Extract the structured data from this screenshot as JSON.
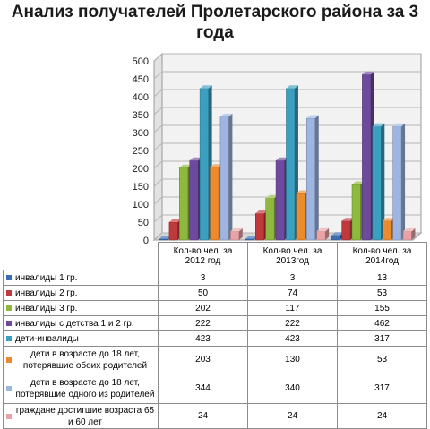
{
  "title": "Анализ получателей Пролетарского района за 3 года",
  "chart_data": {
    "type": "bar",
    "categories": [
      "Кол-во чел. за 2012 год",
      "Кол-во чел. за 2013год",
      "Кол-во чел. за 2014год"
    ],
    "category_lines": [
      [
        "Кол-во чел. за",
        "2012 год"
      ],
      [
        "Кол-во чел. за",
        "2013год"
      ],
      [
        "Кол-во чел. за",
        "2014год"
      ]
    ],
    "ylim": [
      0,
      500
    ],
    "yticks": [
      0,
      50,
      100,
      150,
      200,
      250,
      300,
      350,
      400,
      450,
      500
    ],
    "grid": true,
    "legend": "table-below",
    "series": [
      {
        "name": "инвалиды 1 гр.",
        "color": "#3a6db2",
        "values": [
          3,
          3,
          13
        ]
      },
      {
        "name": "инвалиды 2 гр.",
        "color": "#c0393b",
        "values": [
          50,
          74,
          53
        ]
      },
      {
        "name": "инвалиды 3 гр.",
        "color": "#8eb83e",
        "values": [
          202,
          117,
          155
        ]
      },
      {
        "name": "инвалиды с детства 1 и 2 гр.",
        "color": "#6e4a9e",
        "values": [
          222,
          222,
          462
        ]
      },
      {
        "name": "дети-инвалиды",
        "color": "#3b9fbf",
        "values": [
          423,
          423,
          317
        ]
      },
      {
        "name": "дети в возрасте до 18 лет, потерявшие обоих родителей",
        "color": "#ec8a2e",
        "values": [
          203,
          130,
          53
        ]
      },
      {
        "name": "дети в возрасте до 18 лет, потерявшие одного из родителей",
        "color": "#9db5e0",
        "values": [
          344,
          340,
          317
        ]
      },
      {
        "name": "граждане достигшие возраста 65 и 60 лет",
        "color": "#e9a3a6",
        "values": [
          24,
          24,
          24
        ]
      }
    ]
  }
}
